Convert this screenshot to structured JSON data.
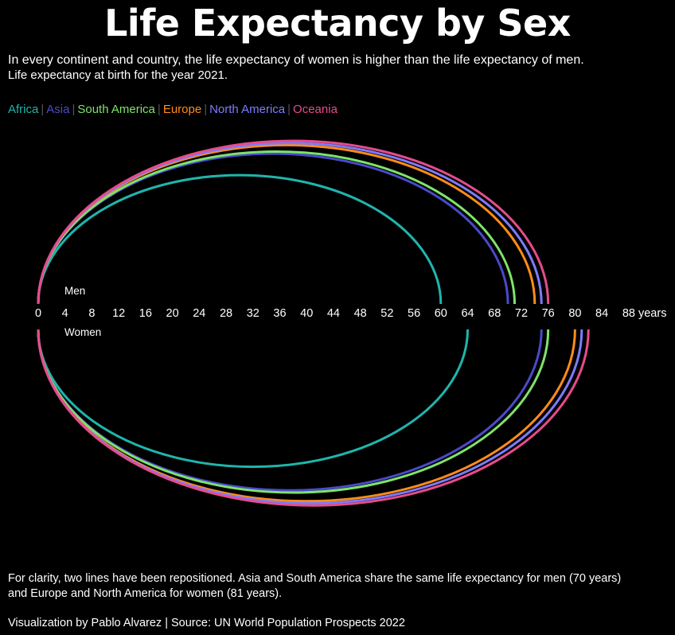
{
  "title": "Life Expectancy by Sex",
  "subtitle": "In every continent and country, the life expectancy of women is higher than the life expectancy of men.",
  "subtitle2": "Life expectancy at birth for the year 2021.",
  "note_line1": "For clarity, two lines have been repositioned. Asia and South America share the same life expectancy for men (70 years)",
  "note_line2": "and Europe and North America for women (81 years).",
  "source": "Visualization by Pablo Alvarez | Source: UN World Population Prospects 2022",
  "colors": {
    "background": "#000000",
    "axis_text": "#ffffff",
    "separator": "#555555"
  },
  "chart_data": {
    "type": "arc",
    "title": "Life Expectancy by Sex",
    "x_unit": "years",
    "xlim": [
      0,
      88
    ],
    "ticks": [
      0,
      4,
      8,
      12,
      16,
      20,
      24,
      28,
      32,
      36,
      40,
      44,
      48,
      52,
      56,
      60,
      64,
      68,
      72,
      76,
      80,
      84,
      88
    ],
    "tick_unit_label": "years",
    "upper_label": "Men",
    "lower_label": "Women",
    "series": [
      {
        "name": "Africa",
        "color": "#1fb5ad",
        "men": 60,
        "women": 64
      },
      {
        "name": "Asia",
        "color": "#4a4ac9",
        "men": 70,
        "women": 75
      },
      {
        "name": "South America",
        "color": "#7ee36b",
        "men": 71,
        "women": 76
      },
      {
        "name": "Europe",
        "color": "#ff8c1a",
        "men": 74,
        "women": 80
      },
      {
        "name": "North America",
        "color": "#7c7cff",
        "men": 75,
        "women": 81
      },
      {
        "name": "Oceania",
        "color": "#e64c8c",
        "men": 76,
        "women": 82
      }
    ]
  }
}
